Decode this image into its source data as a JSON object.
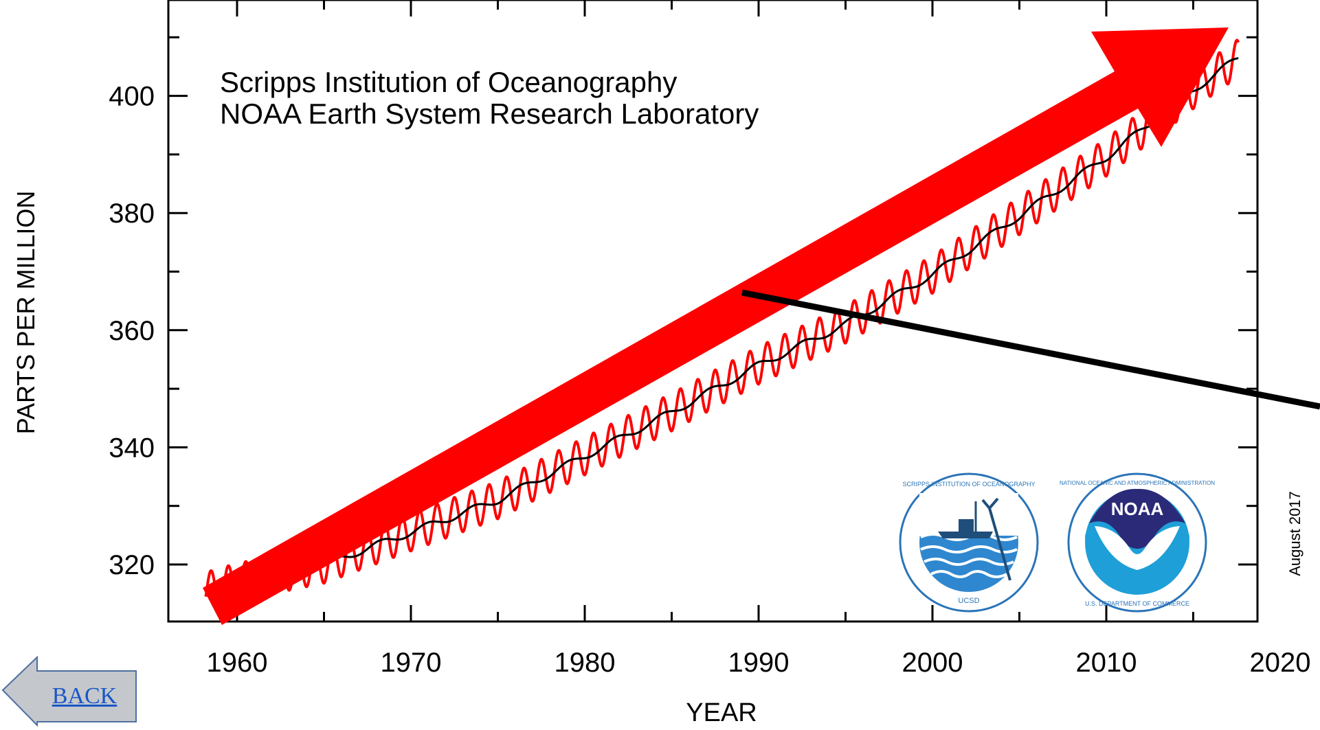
{
  "chart_data": {
    "type": "line",
    "xlabel": "YEAR",
    "ylabel": "PARTS PER MILLION",
    "xlim": [
      1956,
      2020
    ],
    "ylim": [
      310,
      412
    ],
    "x_ticks": [
      1960,
      1970,
      1980,
      1990,
      2000,
      2010,
      2020
    ],
    "y_ticks": [
      320,
      340,
      360,
      380,
      400
    ],
    "annotations": {
      "institution_line1": "Scripps Institution of Oceanography",
      "institution_line2": "NOAA Earth System Research Laboratory",
      "date_stamp": "August 2017"
    },
    "series": [
      {
        "color": "#ff0000",
        "description_points_x": [
          1958.2,
          1960,
          1965,
          1970,
          1975,
          1980,
          1985,
          1990,
          1995,
          2000,
          2005,
          2010,
          2015,
          2017.6
        ],
        "trend_y": [
          315.5,
          317,
          320,
          325.5,
          331,
          338.5,
          346,
          354,
          361,
          369.5,
          379.5,
          389.5,
          401,
          406.5
        ],
        "seasonal_amplitude": 3.2
      },
      {
        "color": "#000000",
        "x": [
          1958.2,
          1960,
          1965,
          1970,
          1975,
          1980,
          1985,
          1990,
          1995,
          2000,
          2005,
          2010,
          2015,
          2017.6
        ],
        "y": [
          315.5,
          317,
          320,
          325.5,
          331,
          338.5,
          346,
          354,
          361,
          369.5,
          379.5,
          389.5,
          401,
          406.5
        ]
      }
    ]
  },
  "logos": {
    "scripps": {
      "text_top": "SCRIPPS INSTITUTION OF OCEANOGRAPHY",
      "text_bottom": "UCSD"
    },
    "noaa": {
      "center": "NOAA",
      "text_top": "NATIONAL OCEANIC AND ATMOSPHERIC ADMINISTRATION",
      "text_bottom": "U.S. DEPARTMENT OF COMMERCE"
    }
  },
  "overlay": {
    "arrow_color": "#ff0000",
    "pointer_color": "#000000"
  },
  "nav": {
    "back_label": "BACK"
  }
}
